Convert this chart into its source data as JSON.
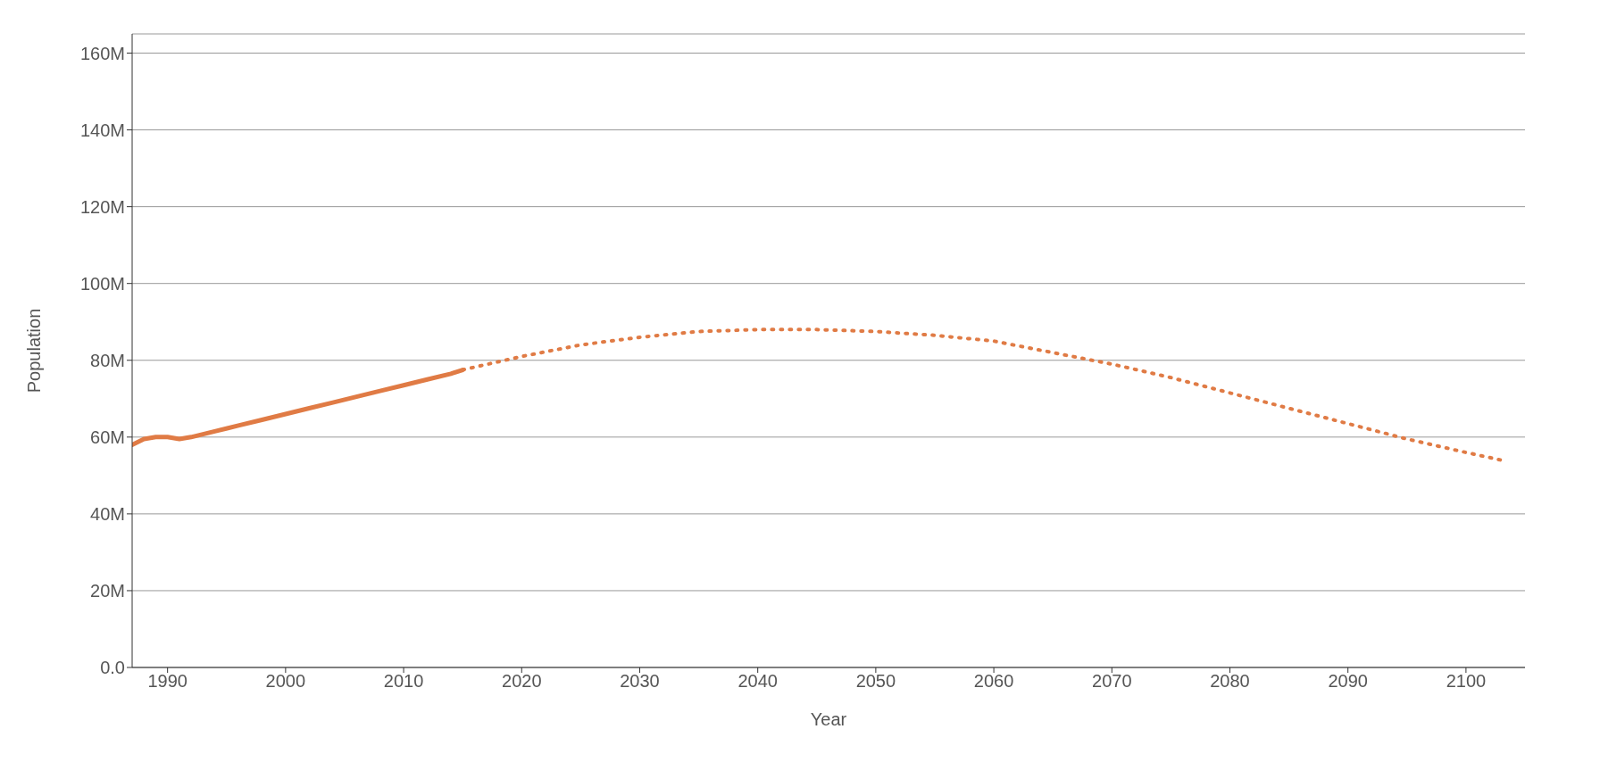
{
  "chart_data": {
    "type": "line",
    "xlabel": "Year",
    "ylabel": "Population",
    "xlim": [
      1987,
      2105
    ],
    "xticks": [
      1990,
      2000,
      2010,
      2020,
      2030,
      2040,
      2050,
      2060,
      2070,
      2080,
      2090,
      2100
    ],
    "ylim": [
      0,
      165000000
    ],
    "yticks": [
      {
        "value": 0,
        "label": "0.0"
      },
      {
        "value": 20000000,
        "label": "20M"
      },
      {
        "value": 40000000,
        "label": "40M"
      },
      {
        "value": 60000000,
        "label": "60M"
      },
      {
        "value": 80000000,
        "label": "80M"
      },
      {
        "value": 100000000,
        "label": "100M"
      },
      {
        "value": 120000000,
        "label": "120M"
      },
      {
        "value": 140000000,
        "label": "140M"
      },
      {
        "value": 160000000,
        "label": "160M"
      }
    ],
    "grid": "y",
    "series": [
      {
        "color": "#e07b45",
        "line_style": "solid",
        "x": [
          1987,
          1988,
          1989,
          1990,
          1991,
          1992,
          1994,
          1996,
          1998,
          2000,
          2002,
          2004,
          2006,
          2008,
          2010,
          2012,
          2014,
          2015
        ],
        "values": [
          58000000,
          59500000,
          60000000,
          60000000,
          59500000,
          60000000,
          61500000,
          63000000,
          64500000,
          66000000,
          67500000,
          69000000,
          70500000,
          72000000,
          73500000,
          75000000,
          76500000,
          77500000
        ]
      },
      {
        "color": "#e07b45",
        "line_style": "dotted",
        "x": [
          2015,
          2020,
          2025,
          2030,
          2035,
          2040,
          2045,
          2050,
          2055,
          2060,
          2065,
          2070,
          2075,
          2080,
          2085,
          2090,
          2095,
          2100,
          2103
        ],
        "values": [
          77500000,
          81000000,
          84000000,
          86000000,
          87500000,
          88000000,
          88000000,
          87500000,
          86500000,
          85000000,
          82000000,
          79000000,
          75500000,
          71500000,
          67500000,
          63500000,
          59500000,
          56000000,
          54000000
        ]
      }
    ]
  }
}
